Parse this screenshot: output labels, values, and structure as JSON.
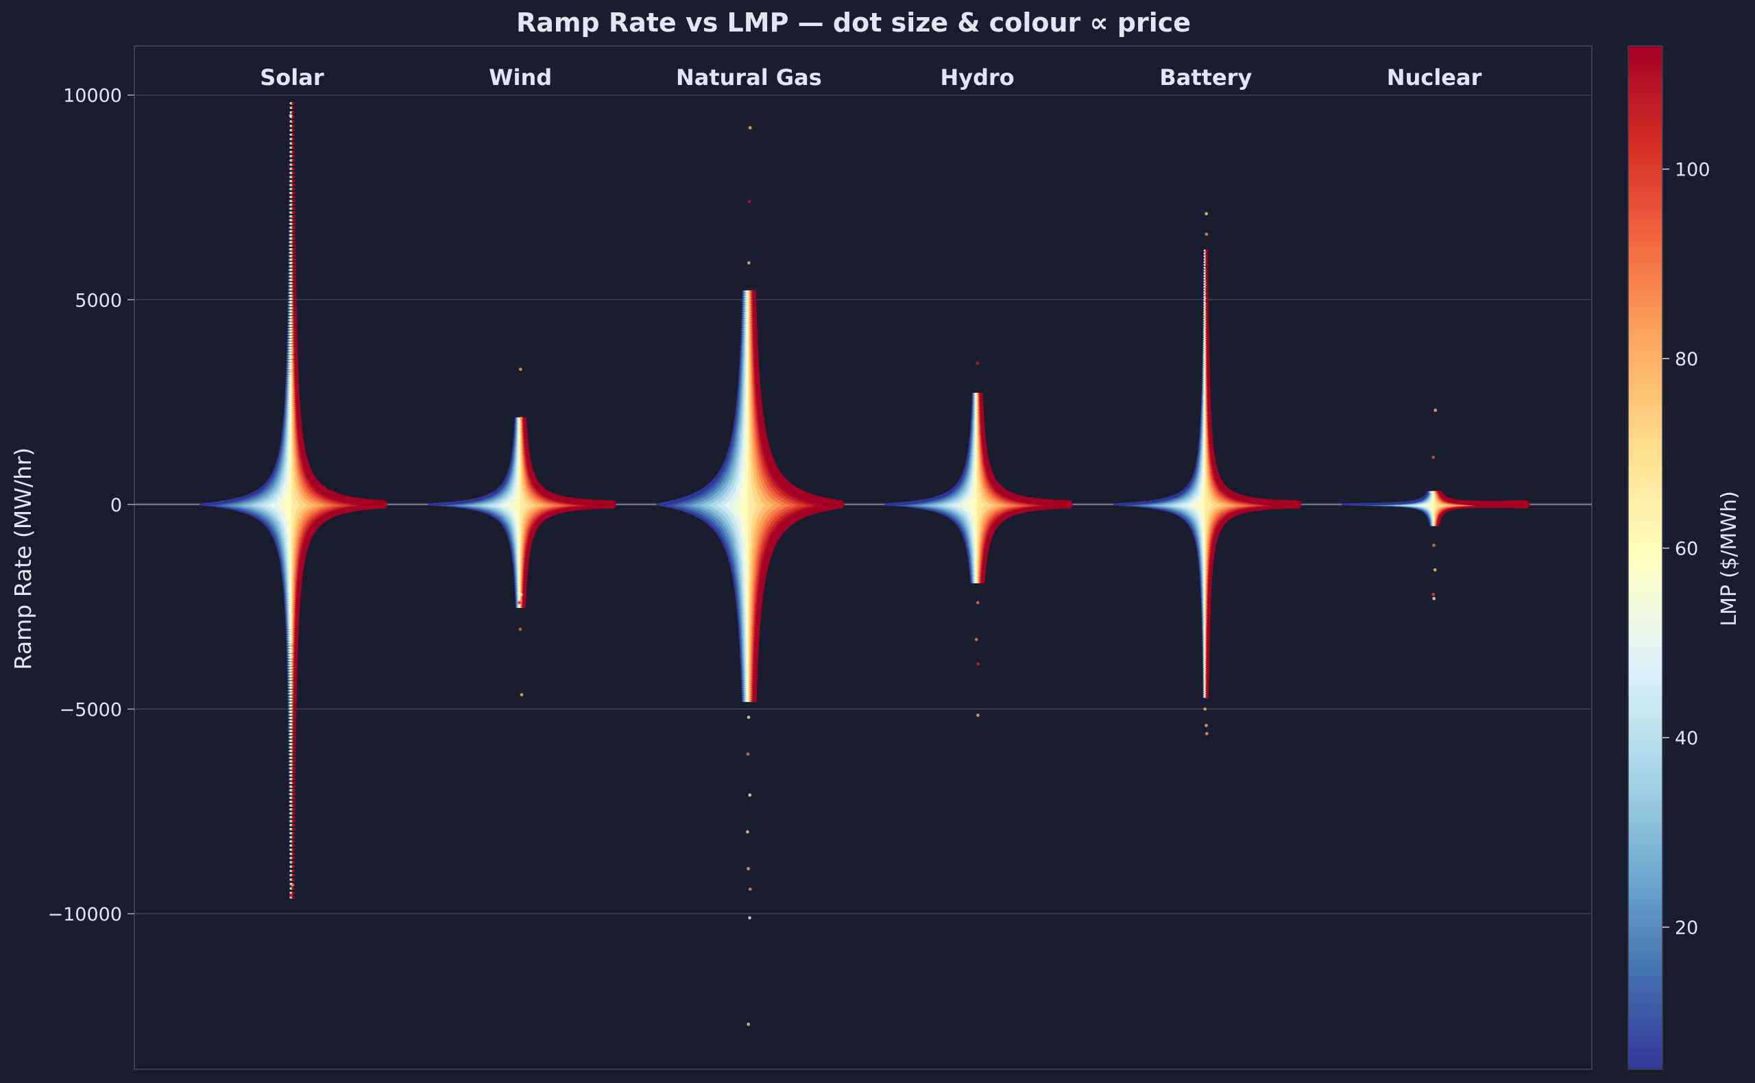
{
  "chart_data": {
    "type": "scatter",
    "subtype": "beeswarm",
    "title": "Ramp Rate vs LMP  —  dot size & colour ∝ price",
    "ylabel": "Ramp Rate (MW/hr)",
    "xlabel": "",
    "ylim": [
      -13800,
      11200
    ],
    "yticks": [
      10000,
      5000,
      0,
      -5000,
      -10000
    ],
    "ytick_labels": [
      "10000",
      "5000",
      "0",
      "−10000"
    ],
    "ytick_labels_full": [
      "10000",
      "5000",
      "0",
      "−5000",
      "−10000"
    ],
    "grid": true,
    "categories": [
      "Solar",
      "Wind",
      "Natural Gas",
      "Hydro",
      "Battery",
      "Nuclear"
    ],
    "series": [
      {
        "category": "Solar",
        "q50": 220,
        "max": 9800,
        "min": -9600,
        "width": 0.8,
        "outliers": [
          [
            0.0,
            9500
          ],
          [
            0.0,
            -9300
          ],
          [
            0.0,
            -9550
          ]
        ]
      },
      {
        "category": "Wind",
        "q50": 130,
        "max": 2100,
        "min": -2500,
        "width": 0.8,
        "outliers": [
          [
            0.0,
            3300
          ],
          [
            0.0,
            2100
          ],
          [
            0.0,
            -2200
          ],
          [
            0.0,
            -2400
          ],
          [
            0.0,
            -3050
          ],
          [
            0.0,
            -4650
          ]
        ]
      },
      {
        "category": "Natural Gas",
        "q50": 400,
        "max": 5200,
        "min": -4800,
        "width": 0.8,
        "outliers": [
          [
            0.0,
            9200
          ],
          [
            0.0,
            7400
          ],
          [
            0.0,
            5900
          ],
          [
            0.0,
            -5200
          ],
          [
            0.0,
            -6100
          ],
          [
            0.0,
            -7100
          ],
          [
            0.0,
            -8000
          ],
          [
            0.0,
            -8900
          ],
          [
            0.0,
            -9400
          ],
          [
            0.0,
            -10100
          ],
          [
            0.0,
            -12700
          ]
        ]
      },
      {
        "category": "Hydro",
        "q50": 150,
        "max": 2700,
        "min": -1900,
        "width": 0.8,
        "outliers": [
          [
            0.0,
            3450
          ],
          [
            0.0,
            -2400
          ],
          [
            0.0,
            -3300
          ],
          [
            0.0,
            -3900
          ],
          [
            0.0,
            -5150
          ]
        ]
      },
      {
        "category": "Battery",
        "q50": 120,
        "max": 6200,
        "min": -4700,
        "width": 0.8,
        "outliers": [
          [
            0.0,
            7100
          ],
          [
            0.0,
            6600
          ],
          [
            0.0,
            -5000
          ],
          [
            0.0,
            -5400
          ],
          [
            0.0,
            -5600
          ]
        ]
      },
      {
        "category": "Nuclear",
        "q50": 25,
        "max": 300,
        "min": -500,
        "width": 0.8,
        "outliers": [
          [
            0.0,
            2300
          ],
          [
            0.0,
            1150
          ],
          [
            0.0,
            -1000
          ],
          [
            0.0,
            -1600
          ],
          [
            0.0,
            -2200
          ],
          [
            0.0,
            -2300
          ]
        ]
      }
    ],
    "colorbar": {
      "label": "LMP ($/MWh)",
      "ticks": [
        20,
        40,
        60,
        80,
        100
      ],
      "min": 5,
      "max": 113,
      "colormap": "RdYlBu_r"
    },
    "colors": {
      "background": "#1a1d2e",
      "grid": "#3a3f55",
      "text": "#e3e6ef",
      "low": "#313695",
      "mid": "#ffffbf",
      "high": "#a50026"
    }
  }
}
